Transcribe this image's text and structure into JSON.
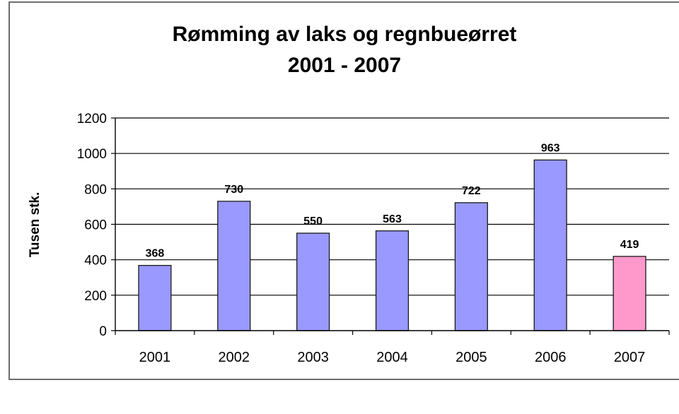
{
  "chart_data": {
    "type": "bar",
    "title": "Rømming av laks og regnbueørret",
    "subtitle": "2001 - 2007",
    "xlabel": "",
    "ylabel": "Tusen stk.",
    "ylim": [
      0,
      1200
    ],
    "yticks": [
      "0",
      "200",
      "400",
      "600",
      "800",
      "1000",
      "1200"
    ],
    "grid": true,
    "legend": "none",
    "categories": [
      "2001",
      "2002",
      "2003",
      "2004",
      "2005",
      "2006",
      "2007"
    ],
    "values": [
      368,
      730,
      550,
      563,
      722,
      963,
      419
    ],
    "data_labels": [
      "368",
      "730",
      "550",
      "563",
      "722",
      "963",
      "419"
    ],
    "colors": {
      "default_bar": "#9999ff",
      "highlight_bar": "#ff99cc",
      "bar_outline": "#1a1a1a",
      "gridline": "#000000"
    },
    "highlight_category": "2007"
  }
}
